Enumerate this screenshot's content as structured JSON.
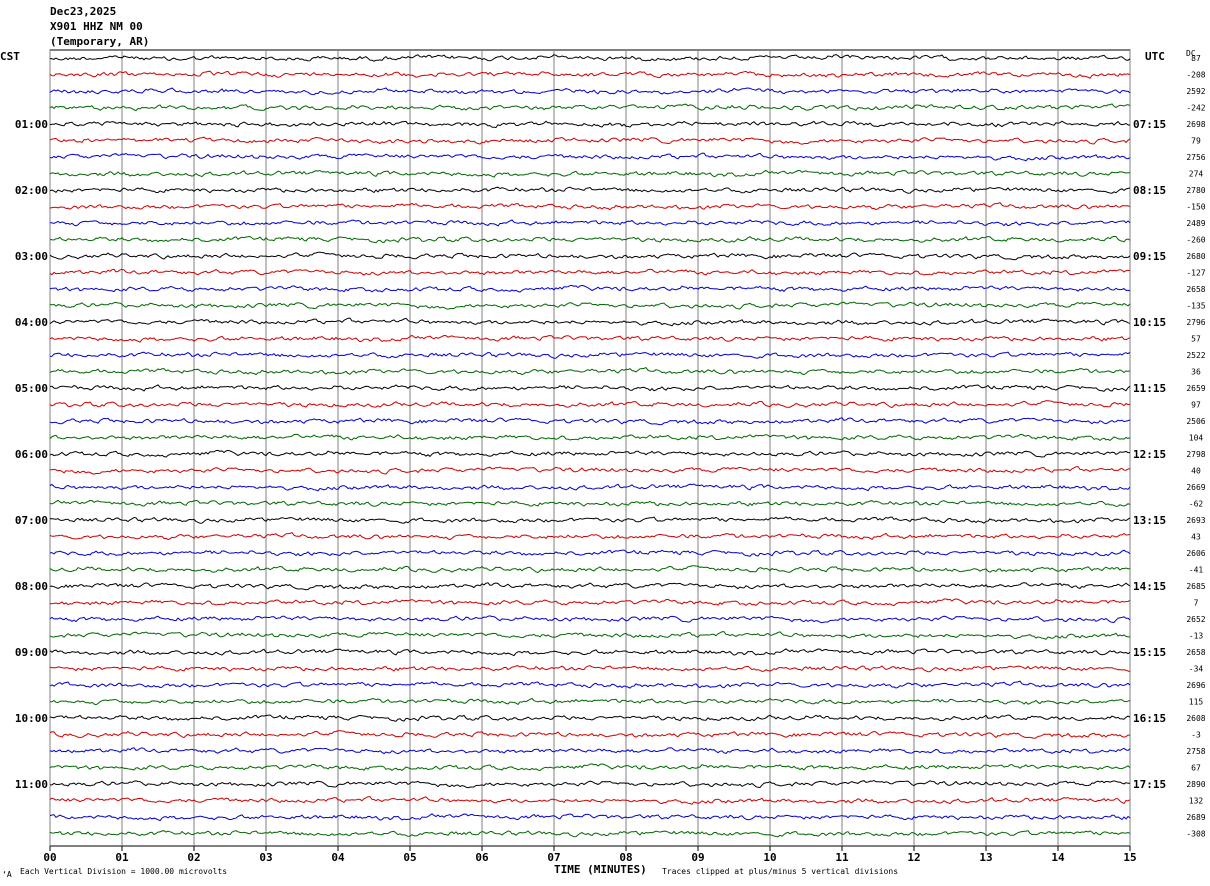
{
  "header": {
    "date": "Dec23,2025",
    "station": "X901 HHZ NM 00",
    "network": "(Temporary, AR)"
  },
  "left_tz": "CST",
  "right_tz": "UTC",
  "dc_label": "DC",
  "footer": {
    "scale_note": "Each Vertical Division = 1000.00 microvolts",
    "clip_note": "Traces clipped at plus/minus 5 vertical divisions",
    "corner_mark": "‘A"
  },
  "colors": {
    "trace_cycle": [
      "#000000",
      "#cc0000",
      "#0000cc",
      "#006600"
    ],
    "grid": "#808080"
  },
  "chart_data": {
    "type": "line",
    "title": "",
    "xlabel": "TIME (MINUTES)",
    "xlim": [
      0,
      15
    ],
    "x_ticks": [
      "00",
      "01",
      "02",
      "03",
      "04",
      "05",
      "06",
      "07",
      "08",
      "09",
      "10",
      "11",
      "12",
      "13",
      "14",
      "15"
    ],
    "trace_count": 48,
    "traces_per_hour": 4,
    "left_time_labels": [
      "01:00",
      "02:00",
      "03:00",
      "04:00",
      "05:00",
      "06:00",
      "07:00",
      "08:00",
      "09:00",
      "10:00",
      "11:00"
    ],
    "right_time_labels": [
      "07:15",
      "08:15",
      "09:15",
      "10:15",
      "11:15",
      "12:15",
      "13:15",
      "14:15",
      "15:15",
      "16:15",
      "17:15"
    ],
    "dc_offsets": [
      "87",
      "-208",
      "2592",
      "-242",
      "2698",
      "79",
      "2756",
      "274",
      "2780",
      "-150",
      "2489",
      "-260",
      "2680",
      "-127",
      "2658",
      "-135",
      "2796",
      "57",
      "2522",
      "36",
      "2659",
      "97",
      "2506",
      "104",
      "2798",
      "40",
      "2669",
      "-62",
      "2693",
      "43",
      "2606",
      "-41",
      "2685",
      "7",
      "2652",
      "-13",
      "2658",
      "-34",
      "2696",
      "115",
      "2608",
      "-3",
      "2758",
      "67",
      "2890",
      "132",
      "2689",
      "-308"
    ],
    "grid": true
  }
}
